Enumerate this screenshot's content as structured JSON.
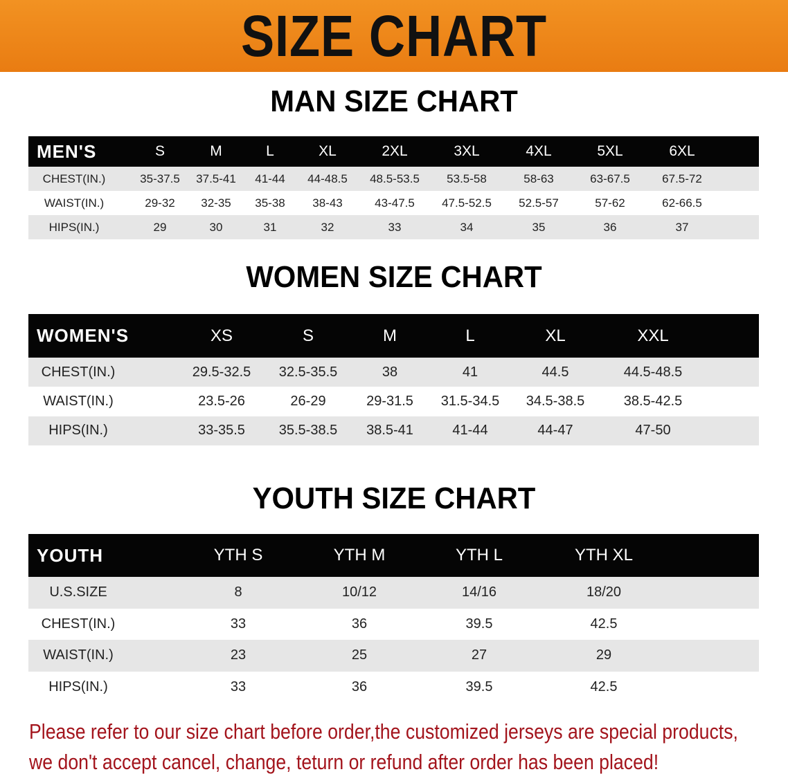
{
  "banner": {
    "title": "SIZE CHART",
    "color": "#ee8418"
  },
  "men": {
    "title": "MAN SIZE CHART",
    "header": "MEN'S",
    "sizes": [
      "S",
      "M",
      "L",
      "XL",
      "2XL",
      "3XL",
      "4XL",
      "5XL",
      "6XL"
    ],
    "rows": [
      {
        "label": "CHEST(IN.)",
        "values": [
          "35-37.5",
          "37.5-41",
          "41-44",
          "44-48.5",
          "48.5-53.5",
          "53.5-58",
          "58-63",
          "63-67.5",
          "67.5-72"
        ]
      },
      {
        "label": "WAIST(IN.)",
        "values": [
          "29-32",
          "32-35",
          "35-38",
          "38-43",
          "43-47.5",
          "47.5-52.5",
          "52.5-57",
          "57-62",
          "62-66.5"
        ]
      },
      {
        "label": "HIPS(IN.)",
        "values": [
          "29",
          "30",
          "31",
          "32",
          "33",
          "34",
          "35",
          "36",
          "37"
        ]
      }
    ]
  },
  "women": {
    "title": "WOMEN SIZE CHART",
    "header": "WOMEN'S",
    "sizes": [
      "XS",
      "S",
      "M",
      "L",
      "XL",
      "XXL"
    ],
    "rows": [
      {
        "label": "CHEST(IN.)",
        "values": [
          "29.5-32.5",
          "32.5-35.5",
          "38",
          "41",
          "44.5",
          "44.5-48.5"
        ]
      },
      {
        "label": "WAIST(IN.)",
        "values": [
          "23.5-26",
          "26-29",
          "29-31.5",
          "31.5-34.5",
          "34.5-38.5",
          "38.5-42.5"
        ]
      },
      {
        "label": "HIPS(IN.)",
        "values": [
          "33-35.5",
          "35.5-38.5",
          "38.5-41",
          "41-44",
          "44-47",
          "47-50"
        ]
      }
    ]
  },
  "youth": {
    "title": "YOUTH SIZE CHART",
    "header": "YOUTH",
    "sizes": [
      "YTH S",
      "YTH M",
      "YTH L",
      "YTH XL"
    ],
    "rows": [
      {
        "label": "U.S.SIZE",
        "values": [
          "8",
          "10/12",
          "14/16",
          "18/20"
        ]
      },
      {
        "label": "CHEST(IN.)",
        "values": [
          "33",
          "36",
          "39.5",
          "42.5"
        ]
      },
      {
        "label": "WAIST(IN.)",
        "values": [
          "23",
          "25",
          "27",
          "29"
        ]
      },
      {
        "label": "HIPS(IN.)",
        "values": [
          "33",
          "36",
          "39.5",
          "42.5"
        ]
      }
    ]
  },
  "note": {
    "line1": "Please refer to our size chart before order,the customized jerseys are special products,",
    "line2": "we don't accept cancel, change, teturn or refund after order has been placed!",
    "color": "#a3141c"
  }
}
